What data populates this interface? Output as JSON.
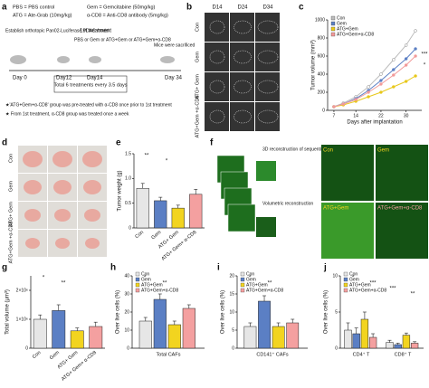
{
  "panel_labels": [
    "a",
    "b",
    "c",
    "d",
    "e",
    "f",
    "g",
    "h",
    "i",
    "j"
  ],
  "schematic": {
    "legend": [
      "PBS = PBS control",
      "Gem = Gemcitabine (50mg/kg)",
      "ATG = Ate-Grab (10mg/kg)",
      "α-CD8 = Anti-CD8 antibody (5mg/kg)"
    ],
    "model": "Establish orthotopic Pan02-Luciferase PDAC model",
    "first": "1st treatment",
    "groups": "PBS or Gem or ATG+Gem or ATG+Gem+α-CD8",
    "sacrifice": "Mice were sacrificed",
    "days": [
      "Day 0",
      "Day12",
      "Day14",
      "Day 34"
    ],
    "treatments": "Total 6 treatments every 3.5 days",
    "notes": [
      "★'ATG+Gem+α-CD8' group was pre-treated with α-CD8 once prior to 1st treatment",
      "★ From 1st treatment, α-CD8 group was treated once a week"
    ]
  },
  "images": {
    "b": {
      "columns": [
        "D14",
        "D24",
        "D34"
      ],
      "rows": [
        "Con",
        "Gem",
        "ATG+ Gem",
        "ATG+Gem +α-CD8"
      ]
    },
    "d": {
      "rows": [
        "Con",
        "Gem",
        "ATG+ Gem",
        "ATG+Gem +α-CD8"
      ]
    },
    "f": {
      "caption_top": "3D reconstruction of sequential 100 SHG images",
      "caption_mid": "Volumetric reconstruction",
      "panels": [
        "Con",
        "Gem",
        "ATG+Gem",
        "ATG+Gem+α-CD8"
      ]
    }
  },
  "chart_data": [
    {
      "type": "line",
      "xlabel": "Days after implantation",
      "ylabel": "Tumor volume (mm³)",
      "x": [
        7,
        10,
        14,
        18,
        22,
        26,
        30,
        33
      ],
      "xlim": [
        5,
        35
      ],
      "xticks": [
        7,
        14,
        22,
        30
      ],
      "ylim": [
        0,
        1000
      ],
      "yticks": [
        0,
        200,
        400,
        600,
        800,
        1000
      ],
      "series": [
        {
          "name": "Con",
          "color": "#bdbdbd",
          "values": [
            40,
            80,
            150,
            260,
            400,
            560,
            720,
            880
          ]
        },
        {
          "name": "Gem",
          "color": "#5b7fc4",
          "values": [
            40,
            70,
            130,
            220,
            330,
            450,
            570,
            680
          ]
        },
        {
          "name": "ATG+Gem",
          "color": "#e8c81a",
          "values": [
            40,
            60,
            100,
            150,
            200,
            260,
            320,
            380
          ]
        },
        {
          "name": "ATG+Gem+α-CD8",
          "color": "#f29a9a",
          "values": [
            40,
            70,
            120,
            200,
            290,
            390,
            500,
            600
          ]
        }
      ],
      "annotations": [
        "***",
        "*"
      ]
    },
    {
      "type": "bar",
      "ylabel": "Tumor weight (g)",
      "categories": [
        "Con",
        "Gem",
        "ATG+ Gem",
        "ATG+ Gem+ α-CD8"
      ],
      "values": [
        0.8,
        0.55,
        0.4,
        0.68
      ],
      "errors": [
        0.1,
        0.07,
        0.06,
        0.1
      ],
      "colors": [
        "#e6e6e6",
        "#5b7fc4",
        "#f2d41f",
        "#f4a0a0"
      ],
      "ylim": [
        0,
        1.5
      ],
      "yticks": [
        0,
        0.5,
        {
          "value": 1,
          "label": "1.0"
        },
        1.5
      ],
      "annotations": [
        "**",
        "*"
      ]
    },
    {
      "type": "bar",
      "ylabel": "Total volume (μm³)",
      "categories": [
        "Con",
        "Gem",
        "ATG+ Gem",
        "ATG+ Gem+ α-CD8"
      ],
      "values": [
        1000000,
        1300000,
        600000,
        750000
      ],
      "errors": [
        150000,
        200000,
        100000,
        150000
      ],
      "colors": [
        "#e6e6e6",
        "#5b7fc4",
        "#f2d41f",
        "#f4a0a0"
      ],
      "ylim": [
        0,
        2500000
      ],
      "yticks": [
        0,
        {
          "value": 1000000,
          "label": "1×10⁶"
        },
        {
          "value": 2000000,
          "label": "2×10⁶"
        }
      ],
      "annotations": [
        "*",
        "**"
      ]
    },
    {
      "type": "bar",
      "ylabel": "Over live cells (%)",
      "categories": [
        "Total CAFs"
      ],
      "ylim": [
        0,
        40
      ],
      "yticks": [
        0,
        10,
        20,
        30,
        40
      ],
      "series": [
        {
          "name": "Con",
          "color": "#e6e6e6",
          "values": [
            15
          ],
          "errors": [
            2
          ]
        },
        {
          "name": "Gem",
          "color": "#5b7fc4",
          "values": [
            27
          ],
          "errors": [
            3
          ]
        },
        {
          "name": "ATG+Gem",
          "color": "#f2d41f",
          "values": [
            13
          ],
          "errors": [
            2
          ]
        },
        {
          "name": "ATG+Gem+α-CD8",
          "color": "#f4a0a0",
          "values": [
            22
          ],
          "errors": [
            2
          ]
        }
      ],
      "annotations": [
        "*",
        "**"
      ]
    },
    {
      "type": "bar",
      "ylabel": "Over live cells (%)",
      "categories": [
        "CD141⁺ CAFs"
      ],
      "ylim": [
        0,
        20
      ],
      "yticks": [
        0,
        5,
        10,
        15,
        20
      ],
      "series": [
        {
          "name": "Con",
          "color": "#e6e6e6",
          "values": [
            6
          ],
          "errors": [
            1
          ]
        },
        {
          "name": "Gem",
          "color": "#5b7fc4",
          "values": [
            13
          ],
          "errors": [
            1.5
          ]
        },
        {
          "name": "ATG+Gem",
          "color": "#f2d41f",
          "values": [
            6
          ],
          "errors": [
            1
          ]
        },
        {
          "name": "ATG+Gem+α-CD8",
          "color": "#f4a0a0",
          "values": [
            7
          ],
          "errors": [
            1
          ]
        }
      ],
      "annotations": [
        "*",
        "**"
      ]
    },
    {
      "type": "bar",
      "ylabel": "Over live cells (%)",
      "categories": [
        "CD4⁺ T",
        "CD8⁺ T"
      ],
      "ylim": [
        0,
        10
      ],
      "yticks": [
        0,
        5,
        10
      ],
      "series": [
        {
          "name": "Con",
          "color": "#e6e6e6",
          "values": [
            2.5,
            0.8
          ],
          "errors": [
            1,
            0.3
          ]
        },
        {
          "name": "Gem",
          "color": "#5b7fc4",
          "values": [
            2,
            0.5
          ],
          "errors": [
            0.8,
            0.2
          ]
        },
        {
          "name": "ATG+Gem",
          "color": "#f2d41f",
          "values": [
            4,
            1.8
          ],
          "errors": [
            1,
            0.3
          ]
        },
        {
          "name": "ATG+Gem+α-CD8",
          "color": "#f4a0a0",
          "values": [
            1.5,
            0.7
          ],
          "errors": [
            0.5,
            0.2
          ]
        }
      ],
      "annotations": [
        "*",
        "***",
        "***",
        "**"
      ]
    }
  ]
}
